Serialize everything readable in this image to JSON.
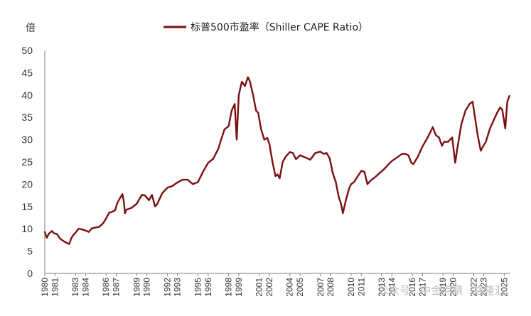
{
  "chart_data": {
    "type": "line",
    "ylabel": "倍",
    "ylim": [
      0,
      50
    ],
    "yticks": [
      0,
      5,
      10,
      15,
      20,
      25,
      30,
      35,
      40,
      45,
      50
    ],
    "xlim": [
      1980,
      2025.6
    ],
    "xticks": [
      "1980",
      "1981",
      "1983",
      "1984",
      "1986",
      "1987",
      "1989",
      "1990",
      "1992",
      "1993",
      "1995",
      "1996",
      "1998",
      "1999",
      "2001",
      "2002",
      "2004",
      "2005",
      "2007",
      "2008",
      "2010",
      "2011",
      "2013",
      "2014",
      "2016",
      "2017",
      "2019",
      "2020",
      "2022",
      "2023",
      "2025"
    ],
    "grid": false,
    "legend": "top-center",
    "series": [
      {
        "name": "标普500市盈率（Shiller CAPE Ratio）",
        "color": "#7b0f10",
        "x": [
          1980,
          1980.2,
          1980.4,
          1980.7,
          1980.9,
          1981.2,
          1981.5,
          1981.8,
          1982.1,
          1982.4,
          1982.6,
          1982.8,
          1983.0,
          1983.3,
          1983.6,
          1984.0,
          1984.3,
          1984.6,
          1985.0,
          1985.3,
          1985.7,
          1986.0,
          1986.3,
          1986.6,
          1986.9,
          1987.1,
          1987.4,
          1987.6,
          1987.75,
          1987.85,
          1988.0,
          1988.5,
          1989.0,
          1989.5,
          1989.8,
          1990.2,
          1990.5,
          1990.8,
          1991.0,
          1991.5,
          1992.0,
          1992.5,
          1993.0,
          1993.5,
          1994.0,
          1994.5,
          1995.0,
          1995.5,
          1996.0,
          1996.5,
          1997.0,
          1997.3,
          1997.6,
          1998.0,
          1998.3,
          1998.6,
          1998.8,
          1999.0,
          1999.3,
          1999.6,
          1999.9,
          2000.1,
          2000.4,
          2000.7,
          2000.9,
          2001.2,
          2001.5,
          2001.8,
          2002.0,
          2002.3,
          2002.6,
          2002.8,
          2003.0,
          2003.3,
          2003.6,
          2004.0,
          2004.3,
          2004.6,
          2005.0,
          2005.5,
          2006.0,
          2006.5,
          2007.0,
          2007.3,
          2007.6,
          2007.9,
          2008.2,
          2008.5,
          2008.8,
          2009.0,
          2009.2,
          2009.5,
          2009.8,
          2010.0,
          2010.3,
          2010.6,
          2011.0,
          2011.3,
          2011.6,
          2011.9,
          2012.3,
          2012.8,
          2013.2,
          2013.6,
          2014.0,
          2014.5,
          2015.0,
          2015.3,
          2015.6,
          2015.9,
          2016.1,
          2016.5,
          2017.0,
          2017.5,
          2018.0,
          2018.3,
          2018.6,
          2018.9,
          2019.1,
          2019.5,
          2019.9,
          2020.2,
          2020.4,
          2020.8,
          2021.2,
          2021.6,
          2021.9,
          2022.1,
          2022.4,
          2022.7,
          2022.9,
          2023.2,
          2023.6,
          2024.0,
          2024.3,
          2024.6,
          2024.8,
          2025.1,
          2025.3,
          2025.5
        ],
        "values": [
          9.3,
          8.0,
          8.9,
          9.5,
          9.0,
          8.8,
          7.8,
          7.3,
          6.9,
          6.6,
          7.9,
          8.6,
          9.1,
          10.0,
          9.9,
          9.6,
          9.3,
          10.1,
          10.3,
          10.4,
          11.2,
          12.3,
          13.6,
          13.8,
          14.2,
          15.8,
          17.0,
          17.8,
          16.0,
          13.5,
          14.3,
          14.7,
          15.6,
          17.6,
          17.5,
          16.4,
          17.6,
          15.0,
          15.5,
          18.0,
          19.2,
          19.6,
          20.4,
          21.0,
          21.0,
          20.0,
          20.5,
          22.8,
          24.8,
          25.7,
          28.0,
          30.2,
          32.3,
          33.0,
          36.5,
          38.0,
          30.0,
          40.0,
          43.0,
          42.0,
          44.0,
          43.0,
          40.0,
          36.5,
          36.0,
          32.2,
          30.0,
          30.4,
          29.0,
          25.0,
          21.8,
          22.2,
          21.3,
          25.0,
          26.2,
          27.2,
          27.0,
          25.6,
          26.5,
          26.0,
          25.5,
          27.0,
          27.3,
          26.8,
          27.0,
          25.8,
          22.5,
          20.5,
          17.0,
          15.7,
          13.5,
          16.5,
          19.0,
          20.0,
          20.5,
          21.6,
          23.0,
          22.8,
          20.0,
          20.8,
          21.5,
          22.5,
          23.3,
          24.3,
          25.2,
          26.0,
          26.8,
          26.8,
          26.5,
          24.8,
          24.5,
          26.0,
          28.5,
          30.5,
          32.8,
          31.0,
          30.5,
          28.6,
          29.5,
          29.5,
          30.5,
          24.8,
          28.0,
          33.5,
          36.5,
          38.0,
          38.5,
          35.5,
          31.0,
          27.5,
          28.4,
          29.5,
          32.5,
          34.5,
          36.0,
          37.2,
          36.8,
          32.5,
          38.5,
          39.8
        ]
      }
    ]
  },
  "watermark": "公众号 · 中金点睛 · 格隆汇"
}
